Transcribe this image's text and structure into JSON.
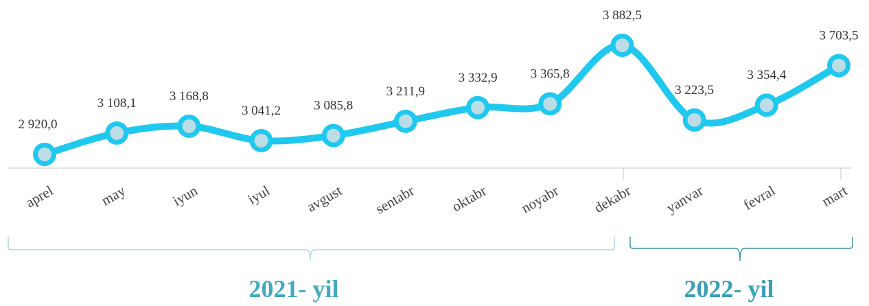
{
  "chart_data": {
    "type": "line",
    "categories": [
      "aprel",
      "may",
      "iyun",
      "iyul",
      "avgust",
      "sentabr",
      "oktabr",
      "noyabr",
      "dekabr",
      "yanvar",
      "fevral",
      "mart"
    ],
    "values": [
      2920.0,
      3108.1,
      3168.8,
      3041.2,
      3085.8,
      3211.9,
      3332.9,
      3365.8,
      3882.5,
      3223.5,
      3354.4,
      3703.5
    ],
    "value_labels": [
      "2 920,0",
      "3 108,1",
      "3 168,8",
      "3 041,2",
      "3 085,8",
      "3 211,9",
      "3 332,9",
      "3 365,8",
      "3 882,5",
      "3 223,5",
      "3 354,4",
      "3 703,5"
    ],
    "color": "#1fc8ee",
    "groups": [
      {
        "label": "2021- yil"
      },
      {
        "label": "2022- yil"
      }
    ]
  }
}
